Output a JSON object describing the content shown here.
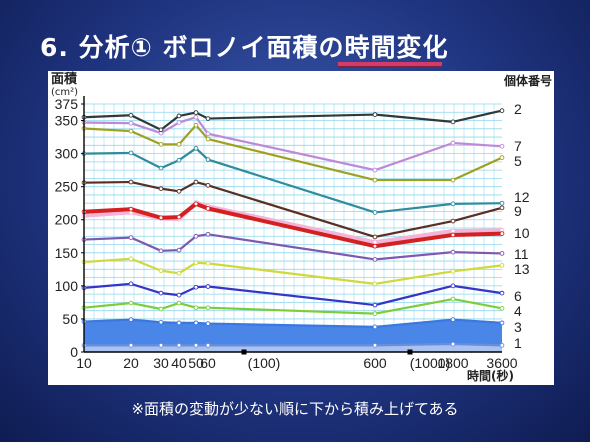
{
  "slide": {
    "title": "6. 分析① ボロノイ面積の時間変化",
    "footnote": "※面積の変動が少ない順に下から積み上げてある"
  },
  "colors": {
    "background": "#2a4494",
    "title_underline": "#d63a6a",
    "grid": "#8fd7ec",
    "axis": "#000000"
  },
  "chart_data": {
    "type": "line",
    "ylabel": "面積",
    "yunit": "(cm²)",
    "xlabel": "時間(秒)",
    "legend_title": "個体番号",
    "ylim": [
      0,
      375
    ],
    "yticks": [
      0,
      50,
      100,
      150,
      200,
      250,
      300,
      350,
      375
    ],
    "categories": [
      "10",
      "20",
      "30",
      "40",
      "50",
      "60",
      "600",
      "1800",
      "3600"
    ],
    "x_ticks": [
      {
        "label": "10",
        "x": "10"
      },
      {
        "label": "20",
        "x": "20"
      },
      {
        "label": "30",
        "x": "30"
      },
      {
        "label": "40",
        "x": "40"
      },
      {
        "label": "50",
        "x": "50"
      },
      {
        "label": "60",
        "x": "60"
      },
      {
        "label": "600",
        "x": "600"
      },
      {
        "label": "1800",
        "x": "1800"
      },
      {
        "label": "3600",
        "x": "3600"
      }
    ],
    "x_markers": [
      {
        "label": "(100)",
        "x": "100"
      },
      {
        "label": "(1000)",
        "x": "1000"
      }
    ],
    "series": [
      {
        "name": "1",
        "color": "#6a8fd8",
        "fill": "#a9c2f0",
        "values": [
          10,
          10,
          10,
          10,
          10,
          10,
          10,
          12,
          10
        ]
      },
      {
        "name": "3",
        "color": "#3a78e0",
        "fill": "#4a86e8",
        "values": [
          46,
          49,
          45,
          44,
          44,
          43,
          38,
          49,
          44
        ]
      },
      {
        "name": "4",
        "color": "#7ccd3a",
        "values": [
          67,
          74,
          65,
          74,
          67,
          67,
          58,
          80,
          66
        ]
      },
      {
        "name": "6",
        "color": "#3434c8",
        "values": [
          97,
          103,
          89,
          86,
          98,
          99,
          71,
          100,
          89
        ]
      },
      {
        "name": "13",
        "color": "#cfd93a",
        "values": [
          136,
          141,
          123,
          119,
          135,
          134,
          103,
          122,
          131
        ]
      },
      {
        "name": "11",
        "color": "#8058b0",
        "values": [
          170,
          173,
          153,
          154,
          175,
          178,
          140,
          151,
          149
        ]
      },
      {
        "name": "10",
        "color": "#f4b4d8",
        "values": [
          206,
          211,
          202,
          201,
          226,
          220,
          166,
          183,
          184
        ]
      },
      {
        "name": "9",
        "color": "#d42020",
        "values": [
          212,
          216,
          203,
          204,
          224,
          217,
          160,
          177,
          179
        ]
      },
      {
        "name": "12",
        "color": "#5a2e22",
        "values": [
          256,
          257,
          247,
          243,
          257,
          252,
          174,
          198,
          218
        ]
      },
      {
        "name": "5",
        "color": "#2e8c9c",
        "values": [
          300,
          301,
          278,
          290,
          308,
          291,
          211,
          224,
          225
        ]
      },
      {
        "name": "7",
        "color": "#c088d8",
        "values": [
          347,
          346,
          331,
          347,
          355,
          330,
          275,
          316,
          311
        ]
      },
      {
        "name": "",
        "color": "#a0a020",
        "values": [
          338,
          334,
          314,
          314,
          343,
          322,
          260,
          260,
          294
        ]
      },
      {
        "name": "2",
        "color": "#303838",
        "values": [
          355,
          358,
          336,
          357,
          362,
          353,
          359,
          348,
          365
        ]
      }
    ],
    "grid": true,
    "legend": "right"
  }
}
